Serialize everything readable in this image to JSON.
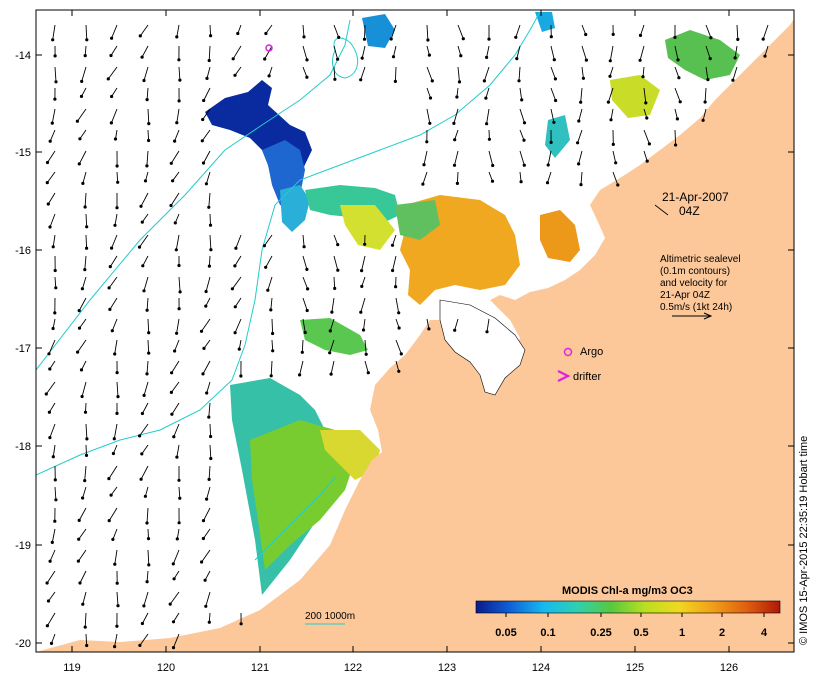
{
  "colors": {
    "land": "#fcc89a",
    "contour": "#22cccc",
    "marker": "#e020e0",
    "arrow": "#000000"
  },
  "axes": {
    "lon_ticks": [
      "119",
      "120",
      "121",
      "122",
      "123",
      "124",
      "125",
      "126"
    ],
    "lat_ticks": [
      "-14",
      "-15",
      "-16",
      "-17",
      "-18",
      "-19",
      "-20"
    ]
  },
  "annotations": {
    "date_line1": "21-Apr-2007",
    "date_line2": "04Z",
    "alt_line1": "Altimetric sealevel",
    "alt_line2": "(0.1m contours)",
    "alt_line3": "and velocity for",
    "alt_line4": "21-Apr 04Z",
    "alt_line5": "0.5m/s (1kt 24h)",
    "argo": "Argo",
    "drifter": "drifter",
    "depth_label": "200  1000m"
  },
  "colorbar": {
    "title": "MODIS Chl-a mg/m3 OC3",
    "ticks": [
      "0.05",
      "0.1",
      "0.25",
      "0.5",
      "1",
      "2",
      "4"
    ],
    "colors": [
      "#0a1a8c",
      "#1060d8",
      "#18b8f0",
      "#30d0b0",
      "#58c840",
      "#b8e020",
      "#f0d820",
      "#f0a018",
      "#e06010",
      "#b01808"
    ]
  },
  "credit": "© IMOS 15-Apr-2015 22:35:19 Hobart time"
}
